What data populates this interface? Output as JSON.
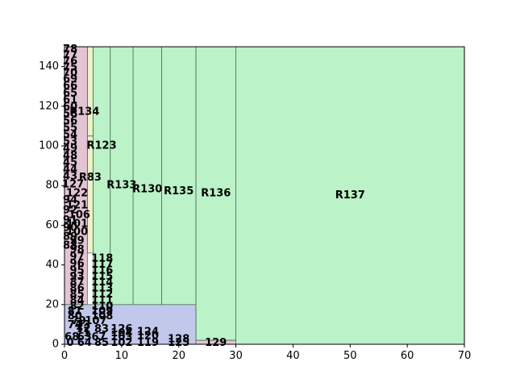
{
  "chart_data": {
    "type": "treemap",
    "title": "",
    "xlabel": "",
    "ylabel": "",
    "xlim": [
      0,
      70
    ],
    "ylim": [
      0,
      150
    ],
    "xticks": [
      "0",
      "10",
      "20",
      "30",
      "40",
      "50",
      "60",
      "70"
    ],
    "yticks": [
      "0",
      "20",
      "40",
      "60",
      "80",
      "100",
      "120",
      "140"
    ],
    "grid": false,
    "legend": "none",
    "colors": {
      "green": "#bbf2c8",
      "yellow": "#eef2c8",
      "pink": "#e2c4d3",
      "blue": "#c2c7ec",
      "edge": "#4d6b55"
    },
    "regions": [
      {
        "label": "R137",
        "x0": 30,
        "x1": 70,
        "y0": 0,
        "y1": 150,
        "color": "green"
      },
      {
        "label": "R136",
        "x0": 23,
        "x1": 30,
        "y0": 2,
        "y1": 150,
        "color": "green"
      },
      {
        "label": "R135",
        "x0": 17,
        "x1": 23,
        "y0": 4,
        "y1": 150,
        "color": "green"
      },
      {
        "label": "R130",
        "x0": 12,
        "x1": 17,
        "y0": 6,
        "y1": 150,
        "color": "green"
      },
      {
        "label": "R133",
        "x0": 8,
        "x1": 12,
        "y0": 7,
        "y1": 150,
        "color": "green"
      },
      {
        "label": "R123",
        "x0": 5,
        "x1": 8,
        "y0": 8,
        "y1": 150,
        "color": "green"
      },
      {
        "label": "R134",
        "x0": 4,
        "x1": 5,
        "y0": 105,
        "y1": 150,
        "color": "yellow"
      },
      {
        "label": "R83",
        "x0": 4,
        "x1": 5,
        "y0": 46,
        "y1": 105,
        "color": "yellow"
      },
      {
        "label": "",
        "x0": 0,
        "x1": 4,
        "y0": 20,
        "y1": 150,
        "color": "pink"
      },
      {
        "label": "",
        "x0": 0,
        "x1": 23,
        "y0": 0,
        "y1": 20,
        "color": "blue"
      },
      {
        "label": "",
        "x0": 23,
        "x1": 30,
        "y0": 0,
        "y1": 2,
        "color": "pink"
      }
    ],
    "small_labels": [
      {
        "text": "78",
        "x": 1.0,
        "y": 148.5
      },
      {
        "text": "77",
        "x": 1.0,
        "y": 145.5
      },
      {
        "text": "76",
        "x": 1.0,
        "y": 142.5
      },
      {
        "text": "75",
        "x": 1.0,
        "y": 139.5
      },
      {
        "text": "70",
        "x": 1.0,
        "y": 136.5
      },
      {
        "text": "69",
        "x": 1.0,
        "y": 133.5
      },
      {
        "text": "66",
        "x": 1.0,
        "y": 130.0
      },
      {
        "text": "65",
        "x": 1.0,
        "y": 126.5
      },
      {
        "text": "61",
        "x": 1.0,
        "y": 123.0
      },
      {
        "text": "60",
        "x": 1.0,
        "y": 119.5
      },
      {
        "text": "58",
        "x": 1.0,
        "y": 116.0
      },
      {
        "text": "56",
        "x": 1.0,
        "y": 112.5
      },
      {
        "text": "55",
        "x": 1.0,
        "y": 109.0
      },
      {
        "text": "54",
        "x": 1.0,
        "y": 105.5
      },
      {
        "text": "53",
        "x": 1.0,
        "y": 102.0
      },
      {
        "text": "49",
        "x": 1.0,
        "y": 98.5
      },
      {
        "text": "48",
        "x": 1.0,
        "y": 95.0
      },
      {
        "text": "45",
        "x": 1.0,
        "y": 91.5
      },
      {
        "text": "44",
        "x": 1.0,
        "y": 88.0
      },
      {
        "text": "43",
        "x": 1.0,
        "y": 84.5
      },
      {
        "text": "127",
        "x": 1.5,
        "y": 80.5
      },
      {
        "text": "122",
        "x": 2.2,
        "y": 76.0
      },
      {
        "text": "94",
        "x": 1.0,
        "y": 72.5
      },
      {
        "text": "121",
        "x": 2.2,
        "y": 70.0
      },
      {
        "text": "92",
        "x": 1.0,
        "y": 67.5
      },
      {
        "text": "106",
        "x": 2.6,
        "y": 65.0
      },
      {
        "text": "91",
        "x": 1.0,
        "y": 62.5
      },
      {
        "text": "101",
        "x": 2.2,
        "y": 60.5
      },
      {
        "text": "90",
        "x": 1.0,
        "y": 58.5
      },
      {
        "text": "100",
        "x": 2.2,
        "y": 56.5
      },
      {
        "text": "89",
        "x": 1.0,
        "y": 54.0
      },
      {
        "text": "99",
        "x": 2.2,
        "y": 52.0
      },
      {
        "text": "88",
        "x": 1.0,
        "y": 49.5
      },
      {
        "text": "98",
        "x": 2.2,
        "y": 47.5
      },
      {
        "text": "97",
        "x": 2.2,
        "y": 44.0
      },
      {
        "text": "118",
        "x": 6.6,
        "y": 43.0
      },
      {
        "text": "96",
        "x": 2.2,
        "y": 40.5
      },
      {
        "text": "117",
        "x": 6.6,
        "y": 40.0
      },
      {
        "text": "95",
        "x": 2.2,
        "y": 37.0
      },
      {
        "text": "116",
        "x": 6.6,
        "y": 37.0
      },
      {
        "text": "93",
        "x": 2.2,
        "y": 34.0
      },
      {
        "text": "115",
        "x": 6.6,
        "y": 34.0
      },
      {
        "text": "87",
        "x": 2.2,
        "y": 31.0
      },
      {
        "text": "114",
        "x": 6.6,
        "y": 31.0
      },
      {
        "text": "86",
        "x": 2.2,
        "y": 28.0
      },
      {
        "text": "113",
        "x": 6.6,
        "y": 28.0
      },
      {
        "text": "85",
        "x": 2.2,
        "y": 25.0
      },
      {
        "text": "112",
        "x": 6.6,
        "y": 25.0
      },
      {
        "text": "84",
        "x": 2.2,
        "y": 22.0
      },
      {
        "text": "111",
        "x": 6.6,
        "y": 22.0
      },
      {
        "text": "82",
        "x": 2.2,
        "y": 19.0
      },
      {
        "text": "110",
        "x": 6.6,
        "y": 19.0
      },
      {
        "text": "81",
        "x": 1.8,
        "y": 16.5
      },
      {
        "text": "109",
        "x": 6.6,
        "y": 16.5
      },
      {
        "text": "80",
        "x": 1.8,
        "y": 14.0
      },
      {
        "text": "108",
        "x": 6.6,
        "y": 14.0
      },
      {
        "text": "79",
        "x": 2.5,
        "y": 11.5
      },
      {
        "text": "107",
        "x": 5.5,
        "y": 11.5
      },
      {
        "text": "74",
        "x": 1.8,
        "y": 9.5
      },
      {
        "text": "73",
        "x": 3.3,
        "y": 9.5
      },
      {
        "text": "72",
        "x": 3.3,
        "y": 7.5
      },
      {
        "text": "83",
        "x": 6.5,
        "y": 7.5
      },
      {
        "text": "126",
        "x": 10.0,
        "y": 7.5
      },
      {
        "text": "71",
        "x": 3.3,
        "y": 5.5
      },
      {
        "text": "68",
        "x": 1.3,
        "y": 3.5
      },
      {
        "text": "63",
        "x": 3.5,
        "y": 3.5
      },
      {
        "text": "67",
        "x": 6.0,
        "y": 3.5
      },
      {
        "text": "104",
        "x": 10.0,
        "y": 5.5
      },
      {
        "text": "124",
        "x": 14.6,
        "y": 6.0
      },
      {
        "text": "103",
        "x": 10.0,
        "y": 3.5
      },
      {
        "text": "120",
        "x": 14.6,
        "y": 4.0
      },
      {
        "text": "128",
        "x": 20.0,
        "y": 2.5
      },
      {
        "text": "0",
        "x": 1.0,
        "y": 0.7
      },
      {
        "text": "64",
        "x": 3.5,
        "y": 0.7
      },
      {
        "text": "85",
        "x": 6.5,
        "y": 0.7
      },
      {
        "text": "102",
        "x": 10.0,
        "y": 0.7
      },
      {
        "text": "119",
        "x": 14.6,
        "y": 0.7
      },
      {
        "text": "125",
        "x": 20.0,
        "y": 0.7
      },
      {
        "text": "129",
        "x": 26.5,
        "y": 0.7
      }
    ],
    "region_label_positions": [
      {
        "label": "R137",
        "x": 50.0,
        "y": 75.0
      },
      {
        "label": "R136",
        "x": 26.5,
        "y": 76.0
      },
      {
        "label": "R135",
        "x": 20.0,
        "y": 77.0
      },
      {
        "label": "R130",
        "x": 14.5,
        "y": 78.0
      },
      {
        "label": "R133",
        "x": 10.0,
        "y": 80.0
      },
      {
        "label": "R123",
        "x": 6.5,
        "y": 100.0
      },
      {
        "label": "R134",
        "x": 3.5,
        "y": 117.0
      },
      {
        "label": "R83",
        "x": 4.5,
        "y": 84.0
      }
    ]
  }
}
